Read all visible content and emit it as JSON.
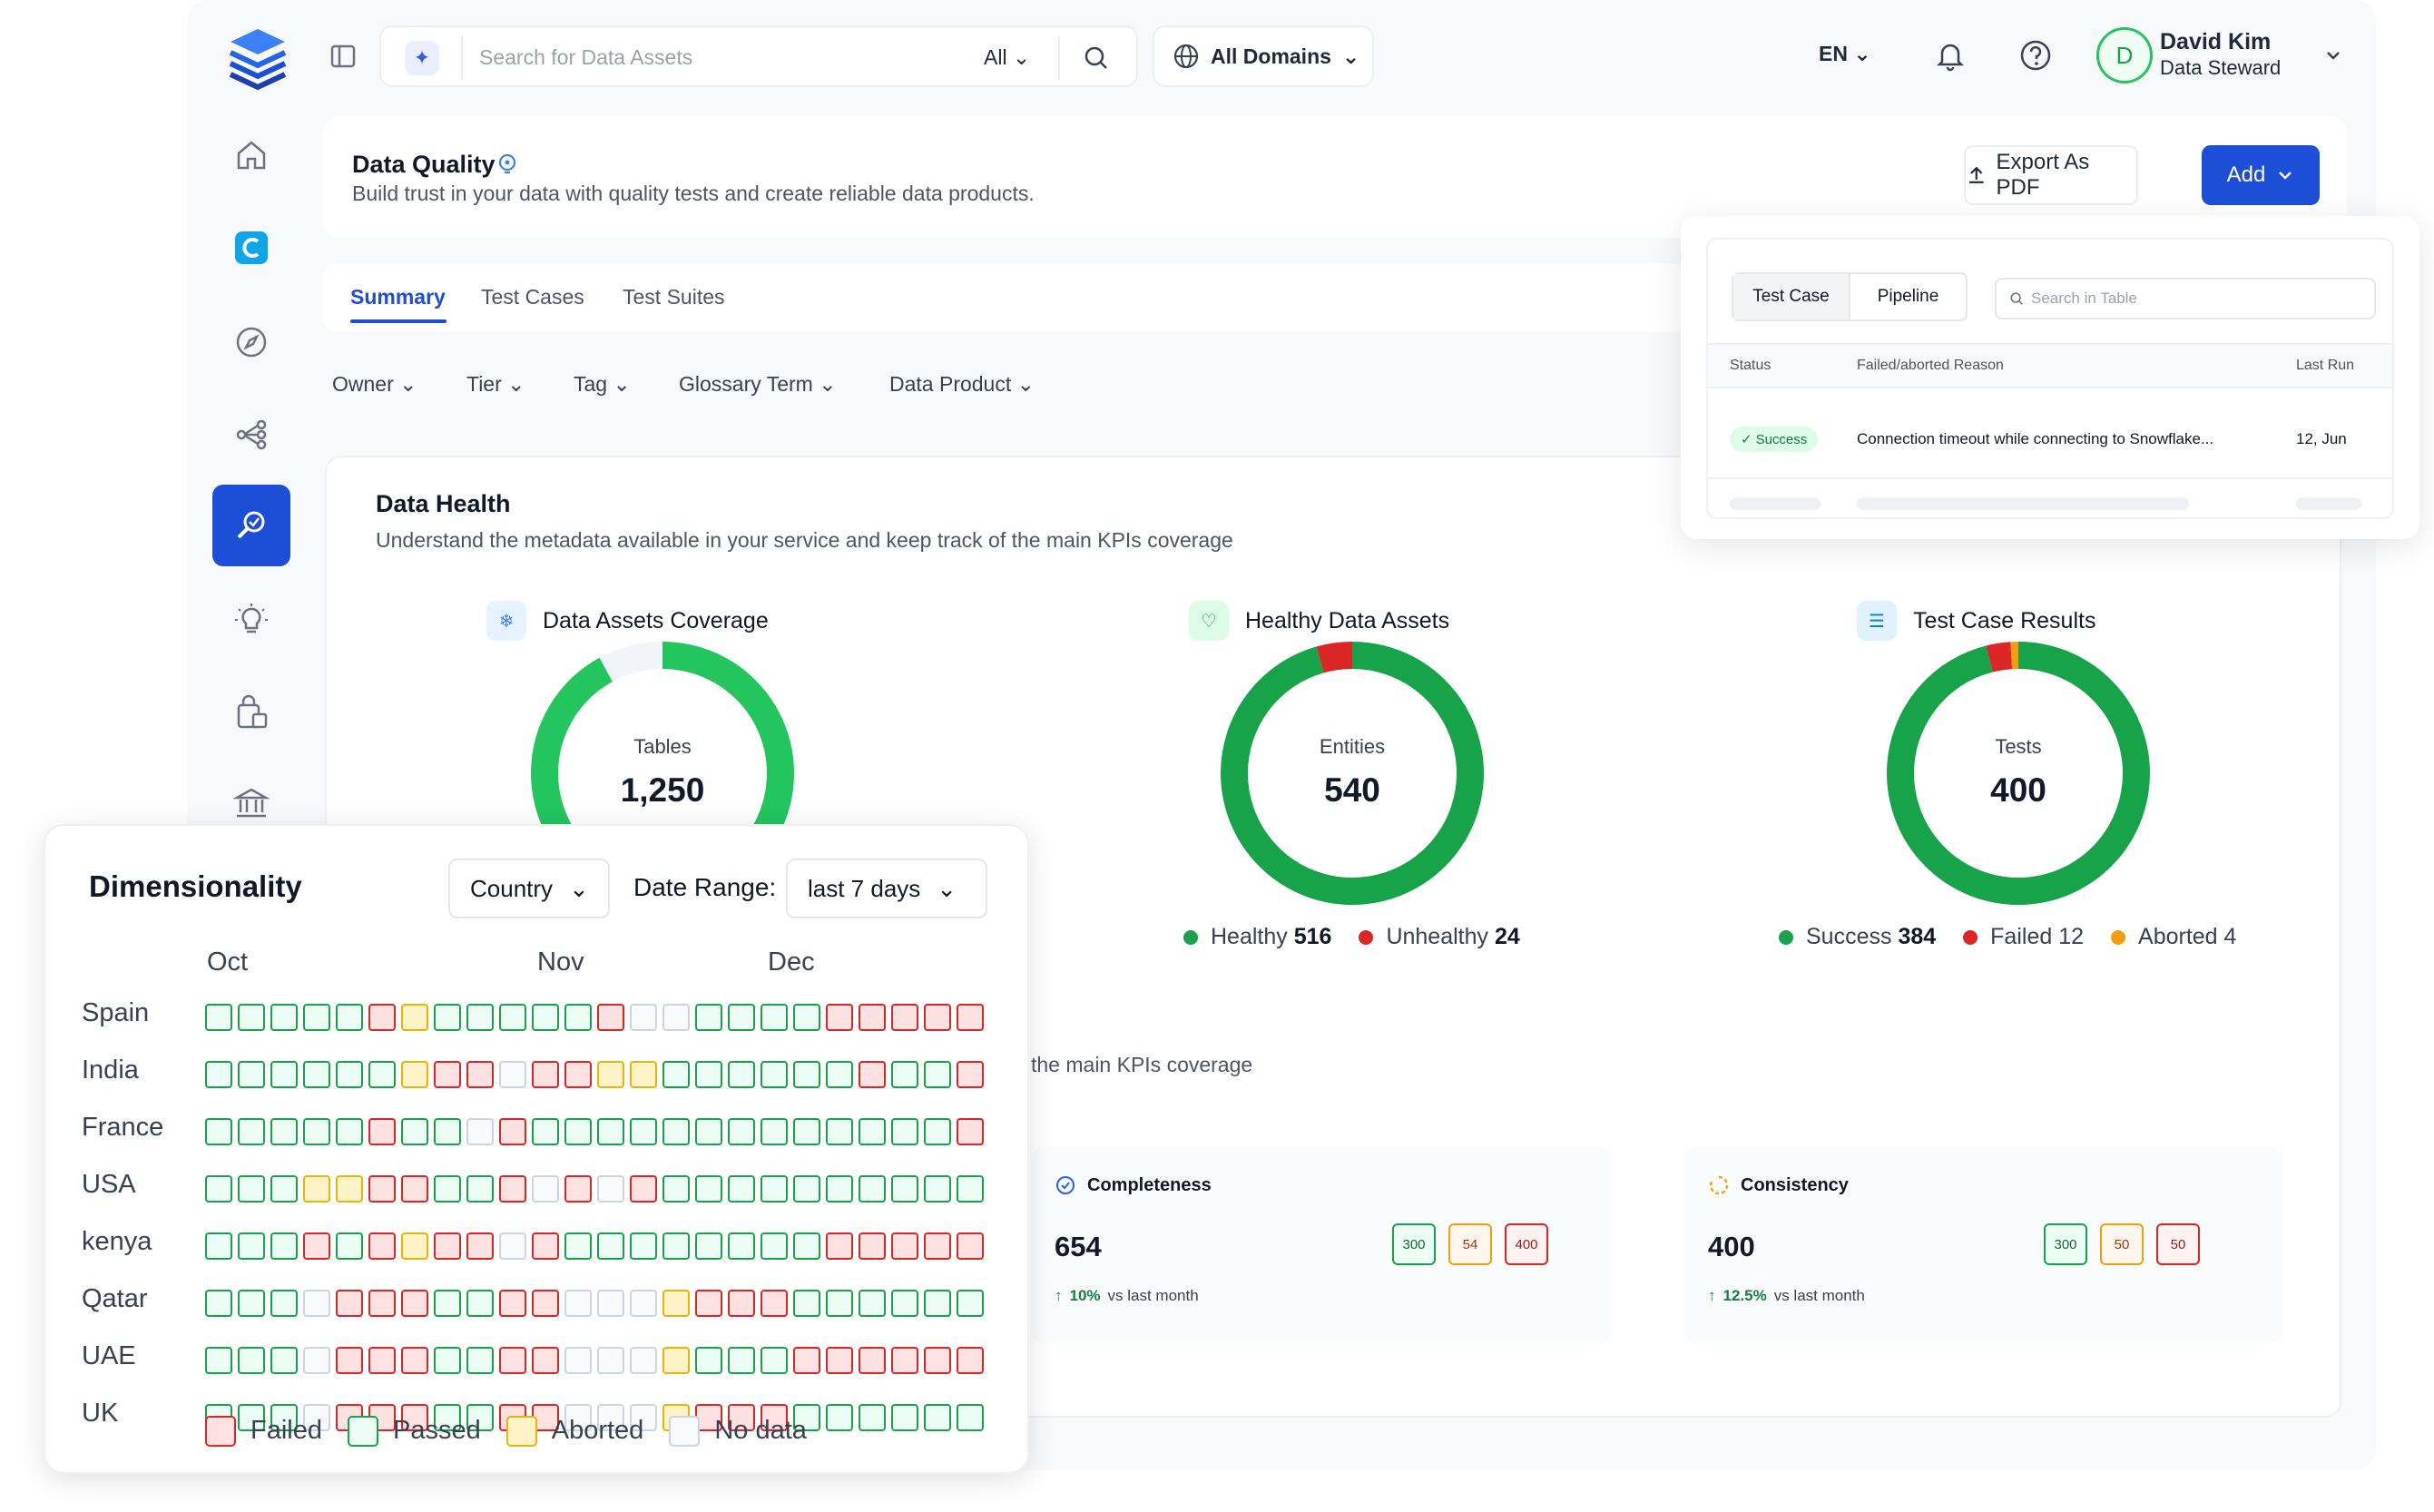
{
  "topbar": {
    "search_placeholder": "Search for Data Assets",
    "search_filter": "All",
    "domains": "All Domains",
    "language": "EN",
    "user_initial": "D",
    "user_name": "David Kim",
    "user_role": "Data Steward"
  },
  "header": {
    "title": "Data Quality",
    "subtitle": "Build trust in your data with quality tests and create reliable data products.",
    "export_label": "Export As PDF",
    "add_label": "Add"
  },
  "tabs": [
    "Summary",
    "Test Cases",
    "Test Suites"
  ],
  "filters": [
    "Owner",
    "Tier",
    "Tag",
    "Glossary Term",
    "Data Product"
  ],
  "health": {
    "title": "Data Health",
    "subtitle": "Understand the metadata available in your service and keep track of the main KPIs coverage"
  },
  "metrics": [
    {
      "title": "Data Assets Coverage",
      "center_label": "Tables",
      "center_value": "1,250",
      "coverage_fraction": 0.92
    },
    {
      "title": "Healthy Data Assets",
      "center_label": "Entities",
      "center_value": "540",
      "legend": [
        {
          "label": "Healthy",
          "value": "516",
          "color": "#16a34a"
        },
        {
          "label": "Unhealthy",
          "value": "24",
          "color": "#dc2626"
        }
      ]
    },
    {
      "title": "Test Case Results",
      "center_label": "Tests",
      "center_value": "400",
      "legend": [
        {
          "label": "Success",
          "value": "384",
          "color": "#16a34a"
        },
        {
          "label": "Failed",
          "value": "12",
          "color": "#dc2626"
        },
        {
          "label": "Aborted",
          "value": "4",
          "color": "#f59e0b"
        }
      ]
    }
  ],
  "kpi_subtitle": "the main KPIs coverage",
  "kpis": [
    {
      "title": "Completeness",
      "value": "654",
      "delta": "10%",
      "delta_text": "vs last month",
      "chips": [
        "300",
        "54",
        "400"
      ]
    },
    {
      "title": "Consistency",
      "value": "400",
      "delta": "12.5%",
      "delta_text": "vs last month",
      "chips": [
        "300",
        "50",
        "50"
      ]
    }
  ],
  "popover": {
    "segments": [
      "Test Case",
      "Pipeline"
    ],
    "search_placeholder": "Search in Table",
    "columns": [
      "Status",
      "Failed/aborted Reason",
      "Last Run"
    ],
    "row": {
      "status": "Success",
      "reason": "Connection timeout while connecting to Snowflake...",
      "last_run": "12, Jun"
    }
  },
  "dimensionality": {
    "title": "Dimensionality",
    "group_select": "Country",
    "date_range_label": "Date Range:",
    "date_range_value": "last 7 days",
    "months": [
      "Oct",
      "Nov",
      "Dec"
    ],
    "rows": [
      {
        "label": "Spain",
        "cells": "PPPPPFAPPPPPFNNPPPPFFFFF"
      },
      {
        "label": "India",
        "cells": "PPPPPPAFFNFFAAPPPPPPFPPF"
      },
      {
        "label": "France",
        "cells": "PPPPPFPPNFPPPPPPPPPPPPPF"
      },
      {
        "label": "USA",
        "cells": "PPPAAFFPPFNFNFPPPPPPPPPP"
      },
      {
        "label": "kenya",
        "cells": "PPPFPFAFFNFPPPPPPPPFFFFF"
      },
      {
        "label": "Qatar",
        "cells": "PPPNFFFPPFFNNNAFFFPPPPPP"
      },
      {
        "label": "UAE",
        "cells": "PPPNFFFPPFFNNNAPPPFFFFFF"
      },
      {
        "label": "UK",
        "cells": "PPPNFFFPPFFNNNAFFFPPPPPP"
      }
    ],
    "legend": [
      "Failed",
      "Passed",
      "Aborted",
      "No data"
    ]
  }
}
